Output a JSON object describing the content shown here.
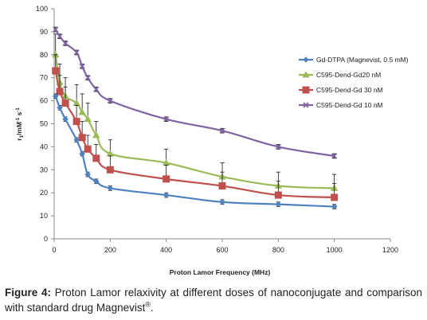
{
  "caption": {
    "label": "Figure 4:",
    "text": " Proton Lamor relaxivity at different doses of nanoconjugate and comparison with standard drug Magnevist",
    "superscript": "®",
    "end": "."
  },
  "chart_data": {
    "type": "line",
    "xlabel": "Proton Lamor Frequency (MHz)",
    "ylabel_main": "r",
    "ylabel_sub": "1",
    "ylabel_rest": "/mM",
    "ylabel_sup1": "-1",
    "ylabel_mid": " s",
    "ylabel_sup2": "-1",
    "xlim": [
      0,
      1200
    ],
    "ylim": [
      0,
      100
    ],
    "xticks": [
      "0",
      "200",
      "400",
      "600",
      "800",
      "1000",
      "1200"
    ],
    "yticks": [
      "0",
      "10",
      "20",
      "30",
      "40",
      "50",
      "60",
      "70",
      "80",
      "90",
      "100"
    ],
    "grid": false,
    "legend_position": "right",
    "series": [
      {
        "name": "Gd-DTPA (Magnevist, 0.5 mM)",
        "color": "#4f81bd",
        "marker": "diamond",
        "error_style": "symmetric",
        "x": [
          5,
          20,
          40,
          80,
          100,
          120,
          150,
          200,
          400,
          600,
          800,
          1000
        ],
        "y": [
          62,
          57,
          52,
          43,
          37,
          28,
          25,
          22,
          19,
          16,
          15,
          14
        ],
        "err": [
          1,
          1,
          1,
          1,
          1,
          1,
          1,
          1,
          1,
          1,
          1,
          1
        ]
      },
      {
        "name": "C595-Dend-Gd20 nM",
        "color": "#9bbb59",
        "marker": "triangle",
        "error_style": "upper",
        "x": [
          5,
          20,
          40,
          80,
          100,
          120,
          150,
          200,
          400,
          600,
          800,
          1000
        ],
        "y": [
          80,
          68,
          62,
          59,
          55,
          52,
          45,
          37,
          33,
          27,
          23,
          22
        ],
        "err": [
          9,
          8,
          8,
          8,
          8,
          7,
          6,
          6,
          6,
          6,
          6,
          6
        ]
      },
      {
        "name": "C595-Dend-Gd 30 nM",
        "color": "#c0504d",
        "marker": "square",
        "error_style": "upper",
        "x": [
          5,
          20,
          40,
          80,
          100,
          120,
          150,
          200,
          400,
          600,
          800,
          1000
        ],
        "y": [
          73,
          64,
          59,
          51,
          44,
          39,
          35,
          30,
          26,
          23,
          19,
          18
        ],
        "err": [
          7,
          7,
          7,
          7,
          7,
          6,
          6,
          6,
          6,
          6,
          6,
          6
        ]
      },
      {
        "name": "C595-Dend-Gd 10 nM",
        "color": "#8064a2",
        "marker": "x",
        "error_style": "symmetric",
        "x": [
          5,
          20,
          40,
          80,
          100,
          120,
          150,
          200,
          400,
          600,
          800,
          1000
        ],
        "y": [
          91,
          88,
          85,
          81,
          75,
          70,
          65,
          60,
          52,
          47,
          40,
          36
        ],
        "err": [
          1,
          1,
          1,
          1,
          1,
          1,
          1,
          1,
          1,
          1,
          1,
          1
        ]
      }
    ]
  }
}
